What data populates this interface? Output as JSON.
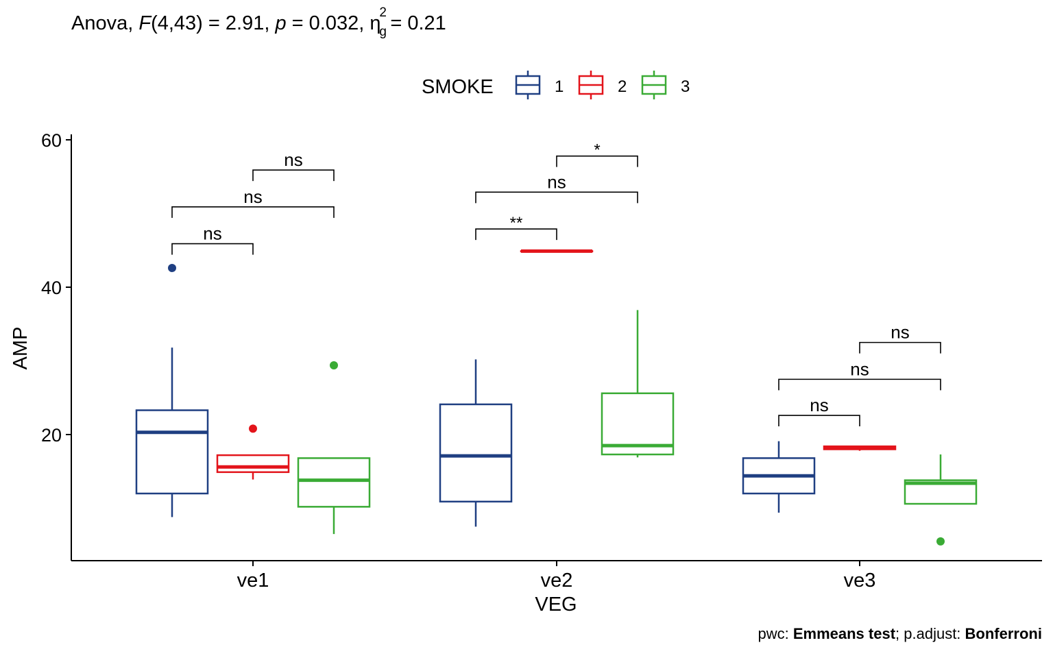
{
  "subtitle": {
    "prefix": "Anova,",
    "f_symbol": "F",
    "f_df": "(4,43) = 2.91,",
    "p_symbol": "p",
    "p_value": "= 0.032,",
    "eta_symbol": "η",
    "eta_sup": "2",
    "eta_sub": "g",
    "eta_value": "= 0.21"
  },
  "caption": {
    "pwc_label": "pwc:",
    "pwc_value": "Emmeans test",
    "sep": "; p.adjust:",
    "adjust_value": "Bonferroni"
  },
  "chart_data": {
    "type": "boxplot",
    "xlabel": "VEG",
    "ylabel": "AMP",
    "categories": [
      "ve1",
      "ve2",
      "ve3"
    ],
    "ylim": [
      3,
      61
    ],
    "yticks": [
      20,
      40,
      60
    ],
    "grid": false,
    "legend": {
      "title": "SMOKE",
      "position": "top",
      "entries": [
        "1",
        "2",
        "3"
      ]
    },
    "colors": {
      "1": "#1f3f82",
      "2": "#e3141b",
      "3": "#3aab35"
    },
    "series": [
      {
        "name": "1",
        "boxes": [
          {
            "category": "ve1",
            "whisker_low": 8.8,
            "q1": 12.0,
            "median": 20.3,
            "q3": 23.3,
            "whisker_high": 31.8,
            "outliers": [
              42.6
            ]
          },
          {
            "category": "ve2",
            "whisker_low": 7.5,
            "q1": 10.9,
            "median": 17.1,
            "q3": 24.1,
            "whisker_high": 30.2,
            "outliers": []
          },
          {
            "category": "ve3",
            "whisker_low": 9.4,
            "q1": 12.0,
            "median": 14.4,
            "q3": 16.8,
            "whisker_high": 19.1,
            "outliers": []
          }
        ]
      },
      {
        "name": "2",
        "boxes": [
          {
            "category": "ve1",
            "whisker_low": 13.9,
            "q1": 14.9,
            "median": 15.6,
            "q3": 17.2,
            "whisker_high": 17.2,
            "outliers": [
              20.8
            ]
          },
          {
            "category": "ve2",
            "whisker_low": 44.9,
            "q1": 44.9,
            "median": 44.9,
            "q3": 44.9,
            "whisker_high": 44.9,
            "outliers": []
          },
          {
            "category": "ve3",
            "whisker_low": 17.8,
            "q1": 18.0,
            "median": 18.2,
            "q3": 18.4,
            "whisker_high": 18.5,
            "outliers": []
          }
        ]
      },
      {
        "name": "3",
        "boxes": [
          {
            "category": "ve1",
            "whisker_low": 6.5,
            "q1": 10.2,
            "median": 13.8,
            "q3": 16.8,
            "whisker_high": 16.8,
            "outliers": [
              29.4
            ]
          },
          {
            "category": "ve2",
            "whisker_low": 16.9,
            "q1": 17.3,
            "median": 18.5,
            "q3": 25.6,
            "whisker_high": 36.9,
            "outliers": []
          },
          {
            "category": "ve3",
            "whisker_low": 10.6,
            "q1": 10.6,
            "median": 13.4,
            "q3": 13.8,
            "whisker_high": 17.3,
            "outliers": [
              5.5
            ]
          }
        ]
      }
    ],
    "comparisons": [
      {
        "category": "ve1",
        "group1": "1",
        "group2": "2",
        "y": 45.9,
        "label": "ns"
      },
      {
        "category": "ve1",
        "group1": "1",
        "group2": "3",
        "y": 50.9,
        "label": "ns"
      },
      {
        "category": "ve1",
        "group1": "2",
        "group2": "3",
        "y": 55.9,
        "label": "ns"
      },
      {
        "category": "ve2",
        "group1": "1",
        "group2": "2",
        "y": 47.9,
        "label": "**"
      },
      {
        "category": "ve2",
        "group1": "1",
        "group2": "3",
        "y": 52.9,
        "label": "ns"
      },
      {
        "category": "ve2",
        "group1": "2",
        "group2": "3",
        "y": 57.8,
        "label": "*"
      },
      {
        "category": "ve3",
        "group1": "1",
        "group2": "2",
        "y": 22.6,
        "label": "ns"
      },
      {
        "category": "ve3",
        "group1": "1",
        "group2": "3",
        "y": 27.5,
        "label": "ns"
      },
      {
        "category": "ve3",
        "group1": "2",
        "group2": "3",
        "y": 32.5,
        "label": "ns"
      }
    ]
  }
}
